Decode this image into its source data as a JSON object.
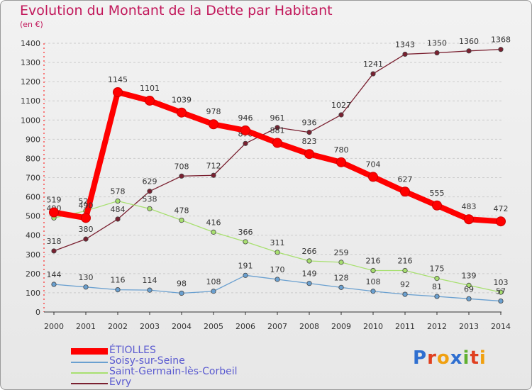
{
  "title": "Evolution du Montant de la Dette par Habitant",
  "unit": "(en €)",
  "logo": "Proxiti",
  "colors": {
    "etiolles": "#ff0000",
    "soisy": "#6aa0d0",
    "saint_germain": "#a8e070",
    "evry": "#7a2030",
    "grid": "#cccccc"
  },
  "chart_data": {
    "type": "line",
    "title": "Evolution du Montant de la Dette par Habitant",
    "ylabel": "(en €)",
    "xlabel": "",
    "x": [
      "2000",
      "2001",
      "2002",
      "2003",
      "2004",
      "2005",
      "2006",
      "2007",
      "2008",
      "2009",
      "2010",
      "2011",
      "2012",
      "2013",
      "2014"
    ],
    "ylim": [
      0,
      1400
    ],
    "yticks": [
      0,
      100,
      200,
      300,
      400,
      500,
      600,
      700,
      800,
      900,
      1000,
      1100,
      1200,
      1300,
      1400
    ],
    "grid": true,
    "legend_position": "bottom-left",
    "series": [
      {
        "name": "ÉTIOLLES",
        "color": "#ff0000",
        "values": [
          519,
          490,
          1145,
          1101,
          1039,
          978,
          946,
          881,
          823,
          780,
          704,
          627,
          555,
          483,
          472
        ]
      },
      {
        "name": "Soisy-sur-Seine",
        "color": "#6aa0d0",
        "values": [
          144,
          130,
          116,
          114,
          98,
          108,
          191,
          170,
          149,
          128,
          108,
          92,
          81,
          69,
          57
        ]
      },
      {
        "name": "Saint-Germain-lès-Corbeil",
        "color": "#a8e070",
        "values": [
          490,
          527,
          578,
          538,
          478,
          416,
          366,
          311,
          266,
          259,
          216,
          216,
          175,
          139,
          103
        ]
      },
      {
        "name": "Evry",
        "color": "#7a2030",
        "values": [
          318,
          380,
          484,
          629,
          708,
          712,
          878,
          961,
          936,
          1027,
          1241,
          1343,
          1350,
          1360,
          1368
        ]
      }
    ]
  }
}
